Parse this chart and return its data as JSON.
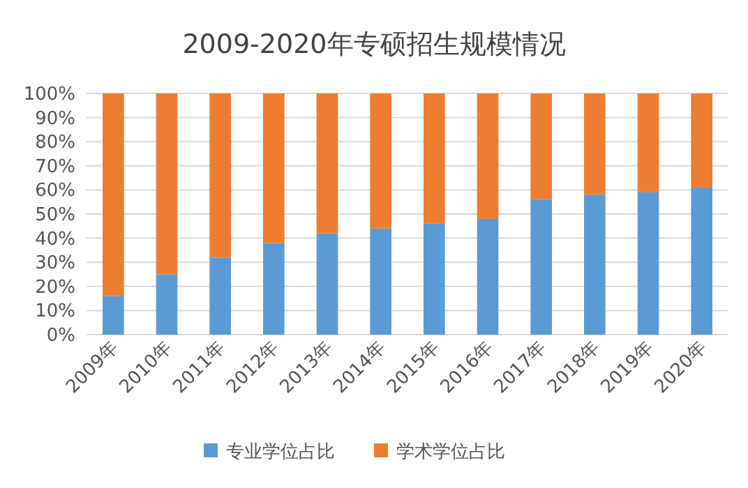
{
  "chart_data": {
    "type": "bar",
    "title": "2009-2020年专硕招生规模情况",
    "stacked": true,
    "categories": [
      "2009年",
      "2010年",
      "2011年",
      "2012年",
      "2013年",
      "2014年",
      "2015年",
      "2016年",
      "2017年",
      "2018年",
      "2019年",
      "2020年"
    ],
    "series": [
      {
        "name": "专业学位占比",
        "color": "#5b9bd5",
        "values": [
          16,
          25,
          32,
          38,
          42,
          44,
          46,
          48,
          56,
          58,
          59,
          61
        ]
      },
      {
        "name": "学术学位占比",
        "color": "#ed7d31",
        "values": [
          84,
          75,
          68,
          62,
          58,
          56,
          54,
          52,
          44,
          42,
          41,
          39
        ]
      }
    ],
    "ylim": [
      0,
      100
    ],
    "yticks": [
      {
        "value": 0,
        "label": "0%"
      },
      {
        "value": 10,
        "label": "10%"
      },
      {
        "value": 20,
        "label": "20%"
      },
      {
        "value": 30,
        "label": "30%"
      },
      {
        "value": 40,
        "label": "40%"
      },
      {
        "value": 50,
        "label": "50%"
      },
      {
        "value": 60,
        "label": "60%"
      },
      {
        "value": 70,
        "label": "70%"
      },
      {
        "value": 80,
        "label": "80%"
      },
      {
        "value": 90,
        "label": "90%"
      },
      {
        "value": 100,
        "label": "100%"
      }
    ],
    "grid": "y",
    "legend": "bottom"
  }
}
